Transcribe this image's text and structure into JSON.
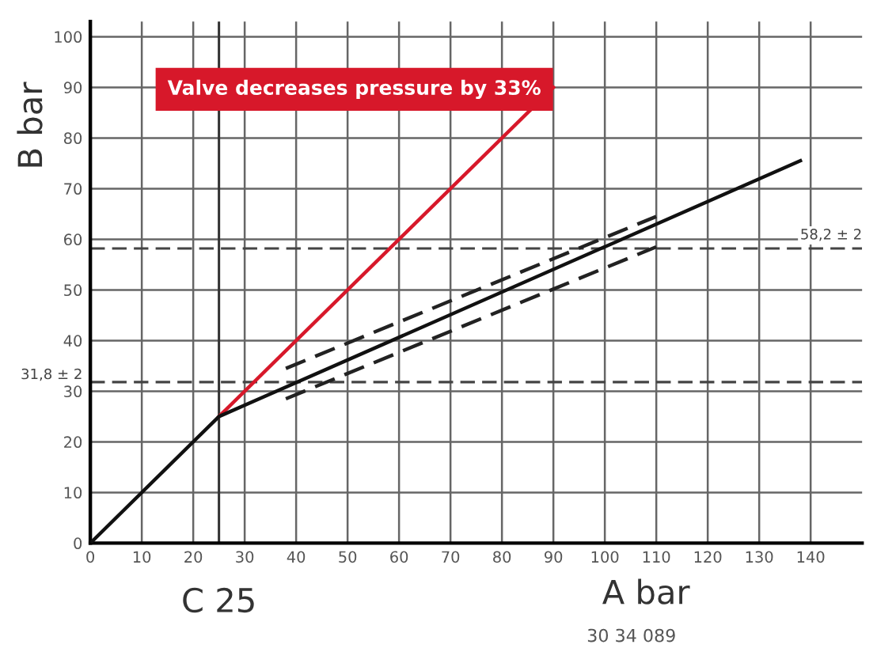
{
  "chart_data": {
    "type": "line",
    "xlabel": "A bar",
    "ylabel": "B bar",
    "xlim": [
      0,
      150
    ],
    "ylim": [
      0,
      103
    ],
    "xticks": [
      0,
      10,
      20,
      30,
      40,
      50,
      60,
      70,
      80,
      90,
      100,
      110,
      120,
      130,
      140
    ],
    "yticks": [
      0,
      10,
      20,
      30,
      40,
      50,
      60,
      70,
      80,
      90,
      100
    ],
    "grid": true,
    "marker": "none",
    "series": [
      {
        "color": "#d7182a",
        "x": [
          25,
          90
        ],
        "values": [
          25,
          90
        ],
        "line_style": "solid"
      },
      {
        "color": "#222222",
        "x": [
          38,
          110
        ],
        "values": [
          34.5,
          64.5
        ],
        "line_style": "dashed"
      },
      {
        "color": "#222222",
        "x": [
          38,
          110
        ],
        "values": [
          28.5,
          58.5
        ],
        "line_style": "dashed"
      },
      {
        "color": "#111111",
        "x": [
          0,
          25,
          138
        ],
        "values": [
          0,
          25,
          75.5
        ],
        "line_style": "solid"
      }
    ],
    "ref_lines": [
      {
        "axis": "y",
        "value": 31.8,
        "label": "31,8 ± 2",
        "line_style": "dashed",
        "color": "#444444"
      },
      {
        "axis": "y",
        "value": 58.2,
        "label": "58,2 ± 2",
        "line_style": "dashed",
        "color": "#444444"
      },
      {
        "axis": "x",
        "value": 25,
        "label": "C 25",
        "line_style": "solid",
        "color": "#333333"
      }
    ],
    "annotations": [
      "Valve decreases pressure by 33%",
      "30 34 089"
    ]
  }
}
